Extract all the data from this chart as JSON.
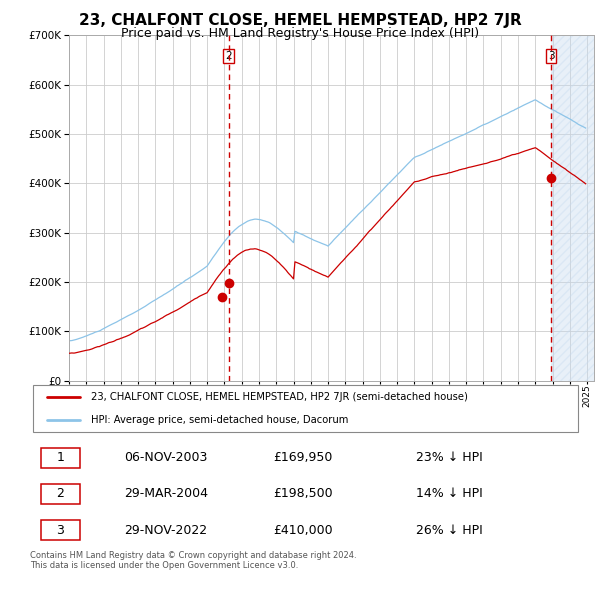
{
  "title": "23, CHALFONT CLOSE, HEMEL HEMPSTEAD, HP2 7JR",
  "subtitle": "Price paid vs. HM Land Registry's House Price Index (HPI)",
  "title_fontsize": 11,
  "subtitle_fontsize": 9,
  "ylim": [
    0,
    700000
  ],
  "yticks": [
    0,
    100000,
    200000,
    300000,
    400000,
    500000,
    600000,
    700000
  ],
  "x_start_year": 1995,
  "x_end_year": 2025,
  "hpi_color": "#8dc4e8",
  "price_color": "#cc0000",
  "marker_color": "#cc0000",
  "vline_color": "#cc0000",
  "vline_style": "--",
  "shade_color": "#c6dbef",
  "shade_alpha": 0.4,
  "transaction1_x": 2003.85,
  "transaction1_price": 169950,
  "transaction2_x": 2004.24,
  "transaction2_price": 198500,
  "transaction3_x": 2022.91,
  "transaction3_price": 410000,
  "legend_line1": "23, CHALFONT CLOSE, HEMEL HEMPSTEAD, HP2 7JR (semi-detached house)",
  "legend_line2": "HPI: Average price, semi-detached house, Dacorum",
  "table_rows": [
    [
      "1",
      "06-NOV-2003",
      "£169,950",
      "23% ↓ HPI"
    ],
    [
      "2",
      "29-MAR-2004",
      "£198,500",
      "14% ↓ HPI"
    ],
    [
      "3",
      "29-NOV-2022",
      "£410,000",
      "26% ↓ HPI"
    ]
  ],
  "footer": "Contains HM Land Registry data © Crown copyright and database right 2024.\nThis data is licensed under the Open Government Licence v3.0.",
  "bg_color": "#ffffff",
  "grid_color": "#cccccc",
  "box_outline_color": "#cc0000"
}
